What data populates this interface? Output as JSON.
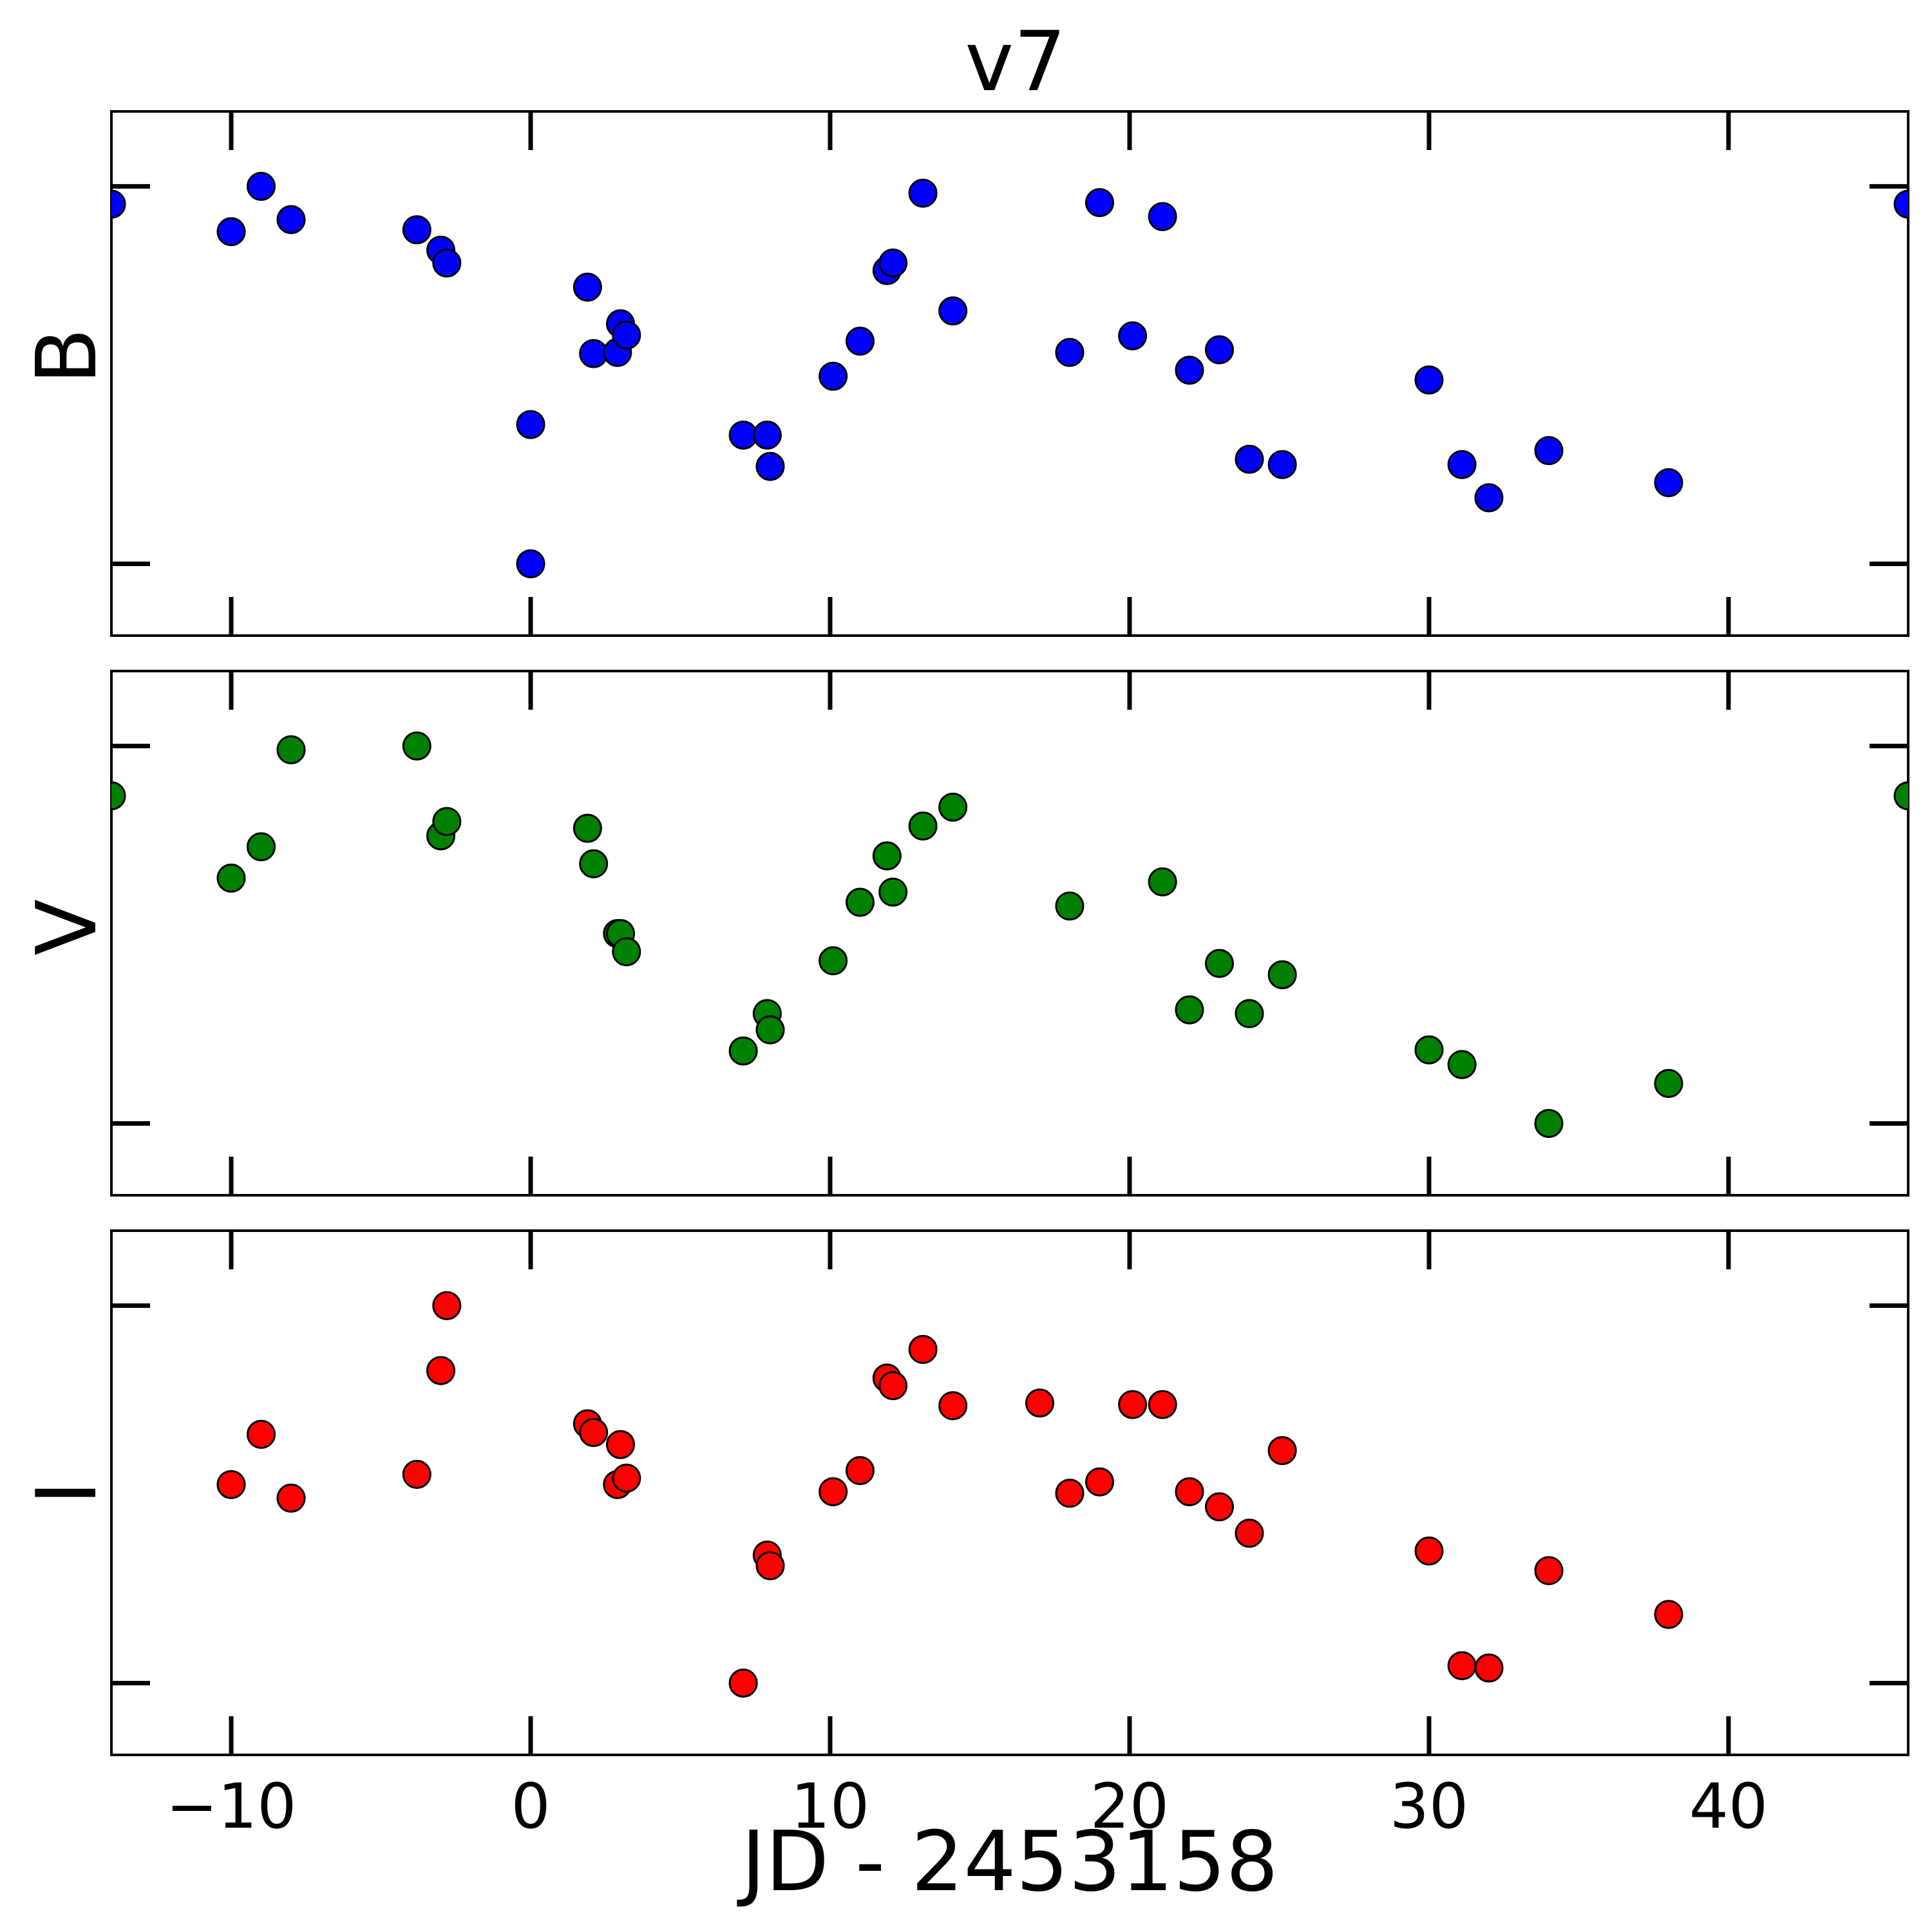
{
  "chart_data": {
    "type": "scatter",
    "title": "v7",
    "xlabel": "JD - 2453158",
    "xlim": [
      -14,
      46
    ],
    "xticks": [
      -10,
      0,
      10,
      20,
      30,
      40
    ],
    "xtick_labels": [
      "−10",
      "0",
      "10",
      "20",
      "30",
      "40"
    ],
    "grid": false,
    "panels": [
      {
        "ylabel": "B",
        "color": "#0000ff",
        "y_tick_marks": 2,
        "points": [
          [
            -14.0,
            0.953
          ],
          [
            -10.0,
            0.88
          ],
          [
            -9.0,
            1.0
          ],
          [
            -8.0,
            0.912
          ],
          [
            -3.8,
            0.885
          ],
          [
            -3.0,
            0.831
          ],
          [
            -2.8,
            0.797
          ],
          [
            0.0,
            0.369
          ],
          [
            0.0,
            0.0
          ],
          [
            1.9,
            0.733
          ],
          [
            2.1,
            0.557
          ],
          [
            2.9,
            0.56
          ],
          [
            3.0,
            0.636
          ],
          [
            3.2,
            0.606
          ],
          [
            7.1,
            0.341
          ],
          [
            7.9,
            0.341
          ],
          [
            8.0,
            0.258
          ],
          [
            10.1,
            0.497
          ],
          [
            11.0,
            0.59
          ],
          [
            11.9,
            0.777
          ],
          [
            12.1,
            0.797
          ],
          [
            13.1,
            0.982
          ],
          [
            14.1,
            0.67
          ],
          [
            18.0,
            0.56
          ],
          [
            19.0,
            0.957
          ],
          [
            20.1,
            0.604
          ],
          [
            21.1,
            0.92
          ],
          [
            22.0,
            0.513
          ],
          [
            23.0,
            0.567
          ],
          [
            24.0,
            0.277
          ],
          [
            25.1,
            0.263
          ],
          [
            30.0,
            0.487
          ],
          [
            31.1,
            0.263
          ],
          [
            32.0,
            0.175
          ],
          [
            34.0,
            0.3
          ],
          [
            38.0,
            0.215
          ],
          [
            46.0,
            0.953
          ]
        ]
      },
      {
        "ylabel": "V",
        "color": "#008000",
        "y_tick_marks": 2,
        "points": [
          [
            -14.0,
            0.868
          ],
          [
            -10.0,
            0.65
          ],
          [
            -9.0,
            0.733
          ],
          [
            -8.0,
            0.99
          ],
          [
            -3.8,
            1.0
          ],
          [
            -3.0,
            0.762
          ],
          [
            -2.8,
            0.8
          ],
          [
            1.9,
            0.782
          ],
          [
            2.1,
            0.688
          ],
          [
            2.9,
            0.503
          ],
          [
            3.0,
            0.503
          ],
          [
            3.2,
            0.455
          ],
          [
            7.1,
            0.192
          ],
          [
            7.9,
            0.291
          ],
          [
            8.0,
            0.248
          ],
          [
            10.1,
            0.431
          ],
          [
            11.0,
            0.586
          ],
          [
            11.9,
            0.709
          ],
          [
            12.1,
            0.613
          ],
          [
            13.1,
            0.788
          ],
          [
            14.1,
            0.838
          ],
          [
            18.0,
            0.576
          ],
          [
            21.1,
            0.64
          ],
          [
            22.0,
            0.301
          ],
          [
            23.0,
            0.424
          ],
          [
            24.0,
            0.291
          ],
          [
            25.1,
            0.394
          ],
          [
            30.0,
            0.195
          ],
          [
            31.1,
            0.156
          ],
          [
            34.0,
            0.0
          ],
          [
            38.0,
            0.106
          ],
          [
            46.0,
            0.868
          ]
        ]
      },
      {
        "ylabel": "I",
        "color": "#ff0000",
        "y_tick_marks": 2,
        "points": [
          [
            -10.0,
            0.526
          ],
          [
            -9.0,
            0.659
          ],
          [
            -8.0,
            0.49
          ],
          [
            -3.8,
            0.553
          ],
          [
            -3.0,
            0.828
          ],
          [
            -2.8,
            1.0
          ],
          [
            1.9,
            0.687
          ],
          [
            2.1,
            0.664
          ],
          [
            2.9,
            0.526
          ],
          [
            3.0,
            0.632
          ],
          [
            3.2,
            0.543
          ],
          [
            7.1,
            0.0
          ],
          [
            7.9,
            0.339
          ],
          [
            8.0,
            0.311
          ],
          [
            10.1,
            0.507
          ],
          [
            11.0,
            0.563
          ],
          [
            11.9,
            0.808
          ],
          [
            12.1,
            0.788
          ],
          [
            13.1,
            0.884
          ],
          [
            14.1,
            0.735
          ],
          [
            17.0,
            0.742
          ],
          [
            18.0,
            0.503
          ],
          [
            19.0,
            0.533
          ],
          [
            20.1,
            0.738
          ],
          [
            21.1,
            0.738
          ],
          [
            22.0,
            0.507
          ],
          [
            23.0,
            0.467
          ],
          [
            24.0,
            0.397
          ],
          [
            25.1,
            0.616
          ],
          [
            30.0,
            0.35
          ],
          [
            31.1,
            0.046
          ],
          [
            32.0,
            0.04
          ],
          [
            34.0,
            0.298
          ],
          [
            38.0,
            0.182
          ]
        ]
      }
    ]
  }
}
